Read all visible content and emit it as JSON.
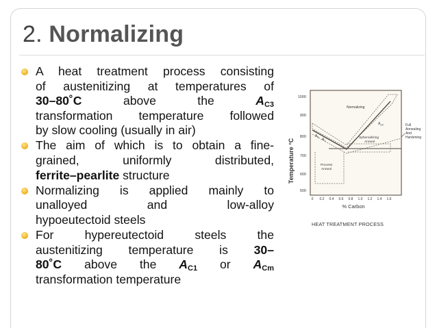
{
  "slide": {
    "title": {
      "number": "2.",
      "word": "Normalizing"
    },
    "bullets": [
      {
        "lines": [
          "A heat treatment process consisting",
          "of austenitizing at temperatures of",
          {
            "strong": "30–80˚C",
            "middle": "above    the",
            "sym": "A",
            "sub": "C3"
          },
          "transformation temperature followed",
          "by slow cooling (usually in air)"
        ]
      },
      {
        "lines": [
          "The aim of which is to obtain a fine-",
          "grained,    uniformly    distributed,",
          {
            "strong": "ferrite–pearlite",
            "rest": " structure"
          }
        ]
      },
      {
        "lines": [
          "Normalizing is applied mainly to",
          "unalloyed        and        low-alloy",
          "hypoeutectoid steels"
        ]
      },
      {
        "lines": [
          "For    hypereutectoid    steels    the",
          {
            "plain": "austenitizing temperature is ",
            "strong": "30–"
          },
          {
            "strong": "80˚C",
            "middle": "above the",
            "sym1": "A",
            "sub1": "C1",
            "or": "or",
            "sym2": "A",
            "sub2": "Cm"
          },
          "transformation temperature"
        ]
      }
    ],
    "diagram": {
      "y_axis_label": "Temperature °C",
      "y_ticks": [
        "1000",
        "900",
        "800",
        "700",
        "600",
        "500"
      ],
      "x_ticks": [
        "0",
        "0.2",
        "0.4",
        "0.6",
        "0.8",
        "1.0",
        "1.2",
        "1.4",
        "1.6"
      ],
      "x_axis_label": "% Carbon",
      "region_labels": {
        "normalizing": "Normalizing",
        "spheroidizing": "Spheroidizing\nAnneal",
        "process": "Process\nAnneal",
        "full": "Full\nAnnealing\nAnd\nHardening",
        "a3": "A3",
        "a1": "A1",
        "acm": "Acm"
      },
      "caption": "HEAT TREATMENT PROCESS"
    }
  }
}
